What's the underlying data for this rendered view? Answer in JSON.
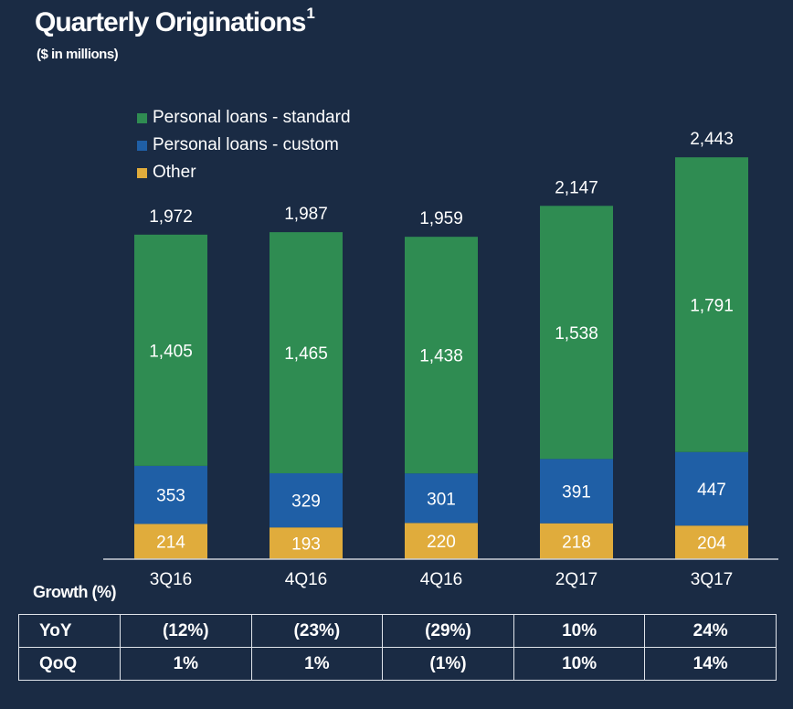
{
  "title": "Quarterly Originations",
  "title_sup": "1",
  "subtitle": "($ in millions)",
  "legend": [
    {
      "label": "Personal loans - standard",
      "color": "#2f8c52"
    },
    {
      "label": "Personal loans - custom",
      "color": "#1f5fa6"
    },
    {
      "label": "Other",
      "color": "#e0ac3c"
    }
  ],
  "chart_data": {
    "type": "bar",
    "stacked": true,
    "categories": [
      "3Q16",
      "4Q16",
      "4Q16",
      "2Q17",
      "3Q17"
    ],
    "series": [
      {
        "name": "Other",
        "values": [
          214,
          193,
          220,
          218,
          204
        ],
        "color": "#e0ac3c"
      },
      {
        "name": "Personal loans - custom",
        "values": [
          353,
          329,
          301,
          391,
          447
        ],
        "color": "#1f5fa6"
      },
      {
        "name": "Personal loans - standard",
        "values": [
          1405,
          1465,
          1438,
          1538,
          1791
        ],
        "color": "#2f8c52"
      }
    ],
    "totals": [
      "1,972",
      "1,987",
      "1,959",
      "2,147",
      "2,443"
    ],
    "segment_labels": [
      [
        "214",
        "193",
        "220",
        "218",
        "204"
      ],
      [
        "353",
        "329",
        "301",
        "391",
        "447"
      ],
      [
        "1,405",
        "1,465",
        "1,438",
        "1,538",
        "1,791"
      ]
    ],
    "ylim": [
      0,
      2443
    ],
    "grid": false
  },
  "growth": {
    "label": "Growth (%)",
    "rows": [
      {
        "label": "YoY",
        "values": [
          "(12%)",
          "(23%)",
          "(29%)",
          "10%",
          "24%"
        ]
      },
      {
        "label": "QoQ",
        "values": [
          "1%",
          "1%",
          "(1%)",
          "10%",
          "14%"
        ]
      }
    ]
  }
}
